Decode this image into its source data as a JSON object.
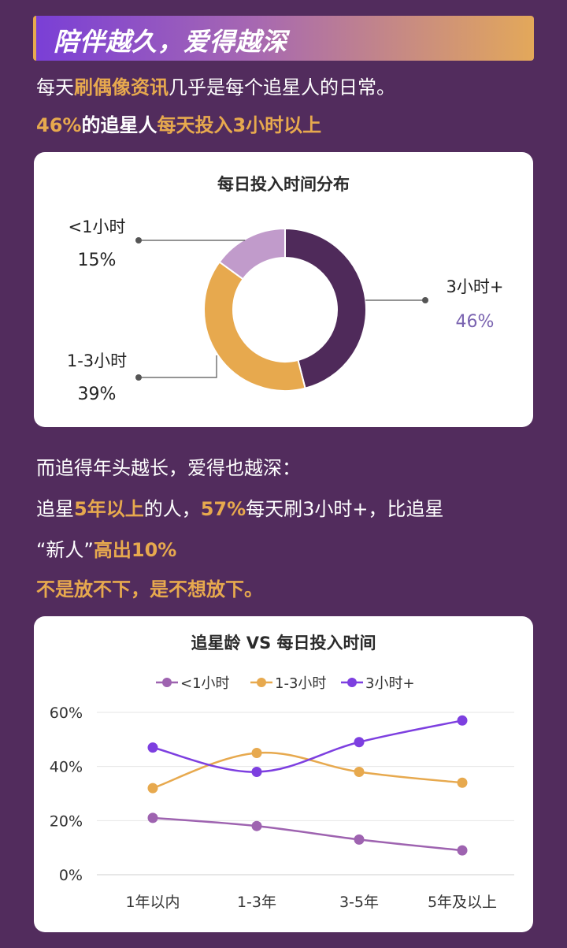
{
  "banner": {
    "title": "陪伴越久，爱得越深"
  },
  "intro": {
    "l1_a": "每天",
    "l1_b": "刷偶像资讯",
    "l1_c": "几乎是每个追星人的日常。",
    "l2_a": "46%",
    "l2_b": "的追星人",
    "l2_c": "每天投入3小时以上"
  },
  "middle": {
    "l1": "而追得年头越长，爱得也越深：",
    "l2_a": "追星",
    "l2_b": "5年以上",
    "l2_c": "的人，",
    "l2_d": "57%",
    "l2_e": "每天刷3小时+，比追星",
    "l3_a": "“新人”",
    "l3_b": "高出10%",
    "l4": "不是放不下，是不想放下。"
  },
  "colors": {
    "background": "#522c5d",
    "accent": "#e7a94e",
    "purple_dark": "#4f2a5a",
    "purple_light": "#c19bcb",
    "line_purple": "#7d3fe0",
    "line_mauve": "#9e63b0"
  },
  "chart_data": [
    {
      "type": "pie",
      "title": "每日投入时间分布",
      "slices": [
        {
          "label": "3小时+",
          "value": 46,
          "display": "46%",
          "color": "#4f2a5a"
        },
        {
          "label": "1-3小时",
          "value": 39,
          "display": "39%",
          "color": "#e7a94e"
        },
        {
          "label": "<1小时",
          "value": 15,
          "display": "15%",
          "color": "#c19bcb"
        }
      ]
    },
    {
      "type": "line",
      "title": "追星龄 VS 每日投入时间",
      "categories": [
        "1年以内",
        "1-3年",
        "3-5年",
        "5年及以上"
      ],
      "series": [
        {
          "name": "<1小时",
          "values": [
            21,
            18,
            13,
            9
          ],
          "color": "#9e63b0"
        },
        {
          "name": "1-3小时",
          "values": [
            32,
            45,
            38,
            34
          ],
          "color": "#e7a94e"
        },
        {
          "name": "3小时+",
          "values": [
            47,
            38,
            49,
            57
          ],
          "color": "#7d3fe0"
        }
      ],
      "yticks": [
        "0%",
        "20%",
        "40%",
        "60%"
      ],
      "ylim": [
        0,
        60
      ],
      "grid": true,
      "legend": "top"
    }
  ]
}
